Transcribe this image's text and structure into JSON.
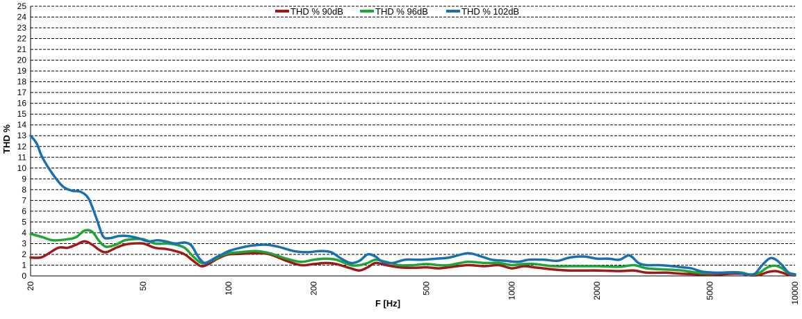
{
  "chart_data": {
    "type": "line",
    "xlabel": "F [Hz]",
    "ylabel": "THD %",
    "xscale": "log",
    "xlim": [
      20,
      10000
    ],
    "ylim": [
      0,
      25
    ],
    "yticks": [
      0,
      1,
      2,
      3,
      4,
      5,
      6,
      7,
      8,
      9,
      10,
      11,
      12,
      13,
      14,
      15,
      16,
      17,
      18,
      19,
      20,
      21,
      22,
      23,
      24,
      25
    ],
    "xticks": [
      20,
      50,
      100,
      200,
      500,
      1000,
      2000,
      5000,
      10000
    ],
    "grid": "horizontal dashed",
    "legend": "top-center",
    "series": [
      {
        "name": "THD % 90dB",
        "color": "#a01919",
        "points": [
          [
            20,
            1.7
          ],
          [
            22,
            1.75
          ],
          [
            25,
            2.6
          ],
          [
            27,
            2.6
          ],
          [
            29,
            2.9
          ],
          [
            31,
            3.2
          ],
          [
            33,
            2.9
          ],
          [
            35,
            2.4
          ],
          [
            37,
            2.2
          ],
          [
            40,
            2.6
          ],
          [
            43,
            2.9
          ],
          [
            46,
            3.0
          ],
          [
            50,
            3.0
          ],
          [
            55,
            2.6
          ],
          [
            60,
            2.5
          ],
          [
            65,
            2.3
          ],
          [
            70,
            2.0
          ],
          [
            75,
            1.4
          ],
          [
            80,
            0.9
          ],
          [
            85,
            1.1
          ],
          [
            90,
            1.5
          ],
          [
            95,
            1.8
          ],
          [
            100,
            2.0
          ],
          [
            110,
            2.05
          ],
          [
            125,
            2.1
          ],
          [
            140,
            2.0
          ],
          [
            160,
            1.4
          ],
          [
            180,
            1.0
          ],
          [
            200,
            1.1
          ],
          [
            220,
            1.2
          ],
          [
            240,
            1.1
          ],
          [
            270,
            0.7
          ],
          [
            290,
            0.5
          ],
          [
            310,
            0.8
          ],
          [
            330,
            1.2
          ],
          [
            360,
            1.0
          ],
          [
            400,
            0.8
          ],
          [
            450,
            0.75
          ],
          [
            500,
            0.8
          ],
          [
            550,
            0.7
          ],
          [
            600,
            0.8
          ],
          [
            700,
            1.0
          ],
          [
            800,
            0.9
          ],
          [
            900,
            1.0
          ],
          [
            1000,
            0.7
          ],
          [
            1100,
            0.9
          ],
          [
            1200,
            0.8
          ],
          [
            1400,
            0.6
          ],
          [
            1600,
            0.5
          ],
          [
            2000,
            0.5
          ],
          [
            2400,
            0.45
          ],
          [
            2700,
            0.5
          ],
          [
            3000,
            0.3
          ],
          [
            3500,
            0.3
          ],
          [
            4000,
            0.2
          ],
          [
            4500,
            0.15
          ],
          [
            5000,
            0.1
          ],
          [
            5500,
            0.15
          ],
          [
            6000,
            0.2
          ],
          [
            6500,
            0.2
          ],
          [
            7000,
            0.05
          ],
          [
            7500,
            0.1
          ],
          [
            8000,
            0.35
          ],
          [
            8500,
            0.45
          ],
          [
            9000,
            0.3
          ],
          [
            9500,
            0.1
          ],
          [
            10000,
            0.05
          ]
        ]
      },
      {
        "name": "THD % 96dB",
        "color": "#1ea534",
        "points": [
          [
            20,
            3.9
          ],
          [
            22,
            3.6
          ],
          [
            24,
            3.3
          ],
          [
            27,
            3.4
          ],
          [
            29,
            3.6
          ],
          [
            31,
            4.2
          ],
          [
            33,
            4.1
          ],
          [
            35,
            3.2
          ],
          [
            37,
            2.7
          ],
          [
            40,
            2.9
          ],
          [
            43,
            3.3
          ],
          [
            46,
            3.4
          ],
          [
            50,
            3.4
          ],
          [
            55,
            3.0
          ],
          [
            60,
            3.0
          ],
          [
            65,
            2.9
          ],
          [
            70,
            2.6
          ],
          [
            75,
            1.8
          ],
          [
            80,
            1.2
          ],
          [
            85,
            1.3
          ],
          [
            90,
            1.6
          ],
          [
            95,
            1.9
          ],
          [
            100,
            2.1
          ],
          [
            110,
            2.2
          ],
          [
            125,
            2.3
          ],
          [
            140,
            2.1
          ],
          [
            160,
            1.6
          ],
          [
            180,
            1.3
          ],
          [
            200,
            1.5
          ],
          [
            220,
            1.6
          ],
          [
            240,
            1.5
          ],
          [
            270,
            1.0
          ],
          [
            290,
            1.0
          ],
          [
            310,
            1.2
          ],
          [
            330,
            1.5
          ],
          [
            360,
            1.3
          ],
          [
            400,
            1.0
          ],
          [
            450,
            1.0
          ],
          [
            500,
            1.1
          ],
          [
            550,
            1.0
          ],
          [
            600,
            1.0
          ],
          [
            700,
            1.3
          ],
          [
            800,
            1.2
          ],
          [
            900,
            1.2
          ],
          [
            1000,
            1.0
          ],
          [
            1100,
            1.1
          ],
          [
            1200,
            1.1
          ],
          [
            1400,
            0.9
          ],
          [
            1600,
            0.9
          ],
          [
            2000,
            0.9
          ],
          [
            2400,
            0.85
          ],
          [
            2700,
            1.0
          ],
          [
            3000,
            0.7
          ],
          [
            3500,
            0.6
          ],
          [
            4000,
            0.5
          ],
          [
            4500,
            0.3
          ],
          [
            5000,
            0.25
          ],
          [
            5500,
            0.3
          ],
          [
            6000,
            0.35
          ],
          [
            6500,
            0.3
          ],
          [
            7000,
            0.1
          ],
          [
            7500,
            0.3
          ],
          [
            8000,
            0.8
          ],
          [
            8500,
            0.95
          ],
          [
            9000,
            0.7
          ],
          [
            9500,
            0.25
          ],
          [
            10000,
            0.1
          ]
        ]
      },
      {
        "name": "THD % 102dB",
        "color": "#1a6fb0",
        "points": [
          [
            20,
            13.0
          ],
          [
            21,
            12.3
          ],
          [
            22,
            11.0
          ],
          [
            24,
            9.4
          ],
          [
            26,
            8.3
          ],
          [
            28,
            7.9
          ],
          [
            30,
            7.8
          ],
          [
            32,
            7.2
          ],
          [
            34,
            5.5
          ],
          [
            36,
            3.7
          ],
          [
            38,
            3.5
          ],
          [
            41,
            3.7
          ],
          [
            44,
            3.7
          ],
          [
            48,
            3.5
          ],
          [
            52,
            3.2
          ],
          [
            56,
            3.3
          ],
          [
            60,
            3.2
          ],
          [
            65,
            3.0
          ],
          [
            70,
            3.1
          ],
          [
            74,
            2.8
          ],
          [
            78,
            1.8
          ],
          [
            82,
            1.2
          ],
          [
            86,
            1.4
          ],
          [
            90,
            1.7
          ],
          [
            95,
            2.0
          ],
          [
            100,
            2.3
          ],
          [
            110,
            2.6
          ],
          [
            120,
            2.8
          ],
          [
            135,
            2.9
          ],
          [
            150,
            2.7
          ],
          [
            170,
            2.3
          ],
          [
            190,
            2.2
          ],
          [
            210,
            2.3
          ],
          [
            230,
            2.2
          ],
          [
            250,
            1.6
          ],
          [
            270,
            1.2
          ],
          [
            290,
            1.4
          ],
          [
            310,
            2.0
          ],
          [
            330,
            1.8
          ],
          [
            350,
            1.3
          ],
          [
            380,
            1.2
          ],
          [
            420,
            1.5
          ],
          [
            480,
            1.5
          ],
          [
            540,
            1.6
          ],
          [
            600,
            1.7
          ],
          [
            700,
            2.1
          ],
          [
            780,
            1.8
          ],
          [
            850,
            1.5
          ],
          [
            950,
            1.4
          ],
          [
            1050,
            1.3
          ],
          [
            1150,
            1.5
          ],
          [
            1300,
            1.5
          ],
          [
            1450,
            1.4
          ],
          [
            1600,
            1.7
          ],
          [
            1800,
            1.8
          ],
          [
            2000,
            1.6
          ],
          [
            2200,
            1.6
          ],
          [
            2400,
            1.5
          ],
          [
            2600,
            1.9
          ],
          [
            2800,
            1.2
          ],
          [
            3000,
            1.0
          ],
          [
            3300,
            1.0
          ],
          [
            3700,
            0.9
          ],
          [
            4000,
            0.8
          ],
          [
            4300,
            0.7
          ],
          [
            4700,
            0.4
          ],
          [
            5200,
            0.3
          ],
          [
            5800,
            0.3
          ],
          [
            6300,
            0.3
          ],
          [
            6700,
            0.15
          ],
          [
            7200,
            0.2
          ],
          [
            7600,
            0.9
          ],
          [
            8100,
            1.6
          ],
          [
            8500,
            1.55
          ],
          [
            9000,
            1.0
          ],
          [
            9500,
            0.3
          ],
          [
            10000,
            0.15
          ]
        ]
      }
    ]
  }
}
